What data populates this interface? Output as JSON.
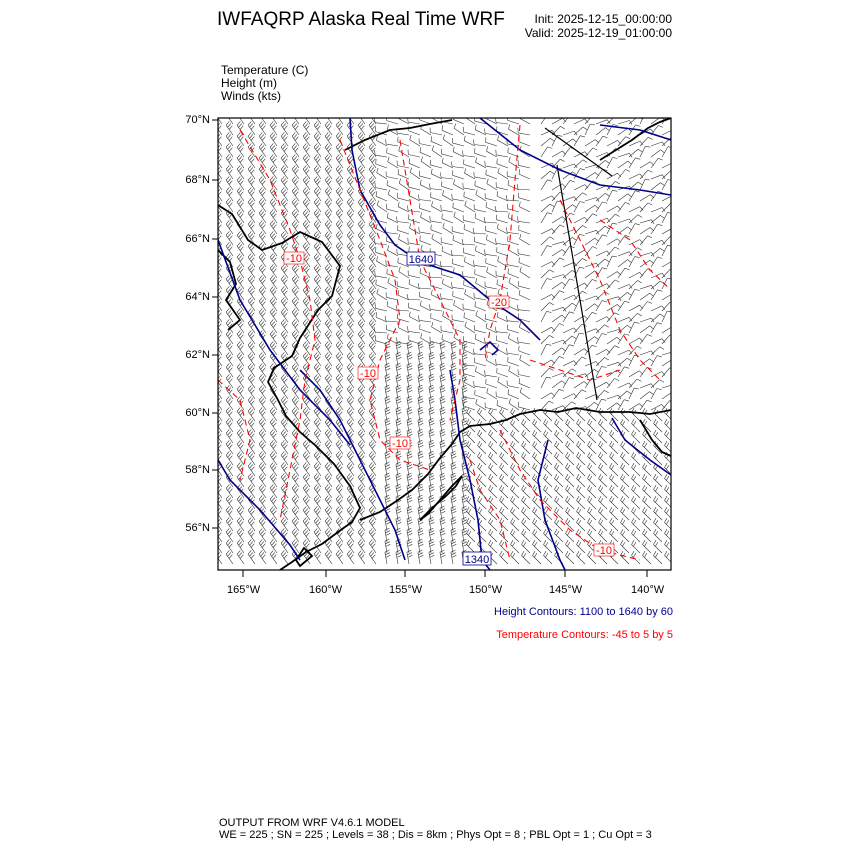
{
  "header": {
    "title": "IWFAQRP Alaska Real Time WRF",
    "init": "Init: 2025-12-15_00:00:00",
    "valid": "Valid: 2025-12-19_01:00:00"
  },
  "fields": [
    {
      "label": "Temperature   (C)"
    },
    {
      "label": "Height   (m)"
    },
    {
      "label": "Winds   (kts)"
    }
  ],
  "map": {
    "lat_ticks": [
      "70°N",
      "68°N",
      "66°N",
      "64°N",
      "62°N",
      "60°N",
      "58°N",
      "56°N"
    ],
    "lon_ticks": [
      "165°W",
      "160°W",
      "155°W",
      "150°W",
      "145°W",
      "140°W"
    ],
    "height_labels": [
      "1640",
      "1340"
    ],
    "temperature_labels": [
      "-10",
      "-20",
      "-10",
      "-10",
      "-10"
    ],
    "colors": {
      "height": "#00008b",
      "temperature": "#ff0000",
      "coast": "#000000",
      "barbs": "#000000"
    }
  },
  "legend": {
    "height_contours": "Height Contours: 1100 to 1640 by 60",
    "temperature_contours": "Temperature Contours: -45 to 5 by 5"
  },
  "footer": {
    "line1": "OUTPUT FROM WRF V4.6.1 MODEL",
    "line2": "WE = 225 ; SN = 225 ; Levels = 38 ; Dis = 8km ; Phys Opt = 8 ; PBL Opt = 1 ; Cu Opt = 3"
  }
}
